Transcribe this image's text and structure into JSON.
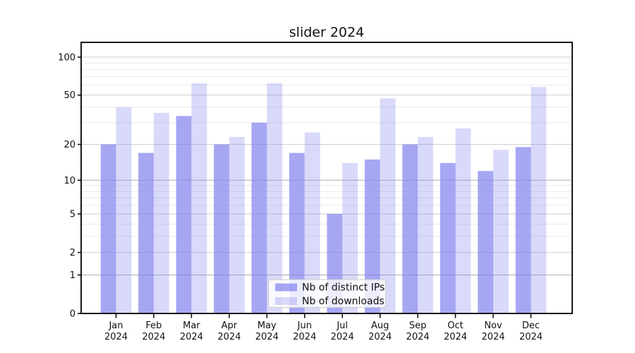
{
  "chart_data": {
    "type": "bar",
    "title": "slider 2024",
    "categories": [
      "Jan 2024",
      "Feb 2024",
      "Mar 2024",
      "Apr 2024",
      "May 2024",
      "Jun 2024",
      "Jul 2024",
      "Aug 2024",
      "Sep 2024",
      "Oct 2024",
      "Nov 2024",
      "Dec 2024"
    ],
    "series": [
      {
        "name": "Nb of distinct IPs",
        "color": "#8080ee",
        "fill_opacity": 0.7,
        "values": [
          20,
          17,
          34,
          20,
          30,
          17,
          5,
          15,
          20,
          14,
          12,
          19
        ]
      },
      {
        "name": "Nb of downloads",
        "color": "#8080ee",
        "fill_opacity": 0.3,
        "values": [
          40,
          36,
          62,
          23,
          62,
          25,
          14,
          47,
          23,
          27,
          18,
          58
        ]
      }
    ],
    "yscale": "symlog",
    "yticks": [
      0,
      1,
      2,
      5,
      10,
      20,
      50,
      100
    ],
    "minor_yticks": [
      3,
      4,
      6,
      7,
      8,
      9,
      30,
      40,
      60,
      70,
      80,
      90
    ],
    "ylim": [
      0,
      130
    ],
    "xlabel": "",
    "ylabel": "",
    "grid": true,
    "legend": {
      "position": "lower center",
      "entries": [
        "Nb of distinct IPs",
        "Nb of downloads"
      ]
    },
    "colors": {
      "axis": "#000000",
      "major_grid": "#b0b0b0",
      "labeled_grid": "#cfcfcf",
      "minor_grid": "#eaeaea"
    }
  }
}
